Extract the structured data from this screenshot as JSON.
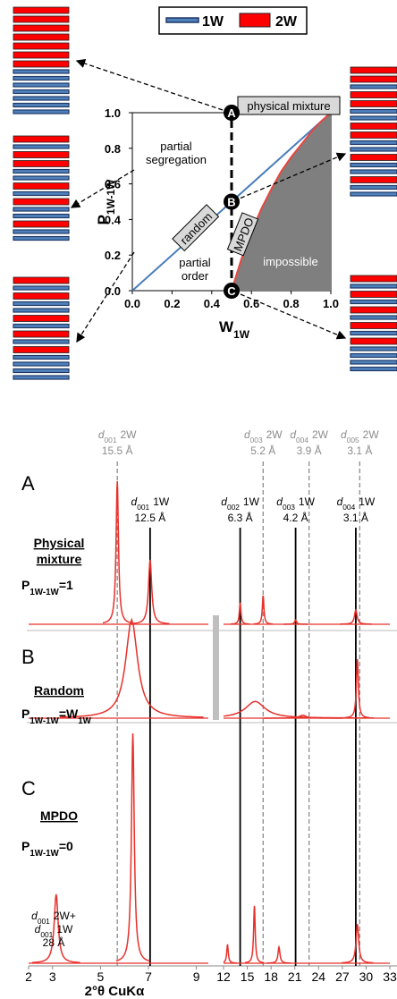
{
  "chart_data": [
    {
      "type": "line",
      "legend": [
        {
          "name": "1W",
          "color": "#4f81bd"
        },
        {
          "name": "2W",
          "color": "#ff0000"
        }
      ],
      "xlabel": [
        {
          "text": "W"
        },
        {
          "text": "1W",
          "sub": true
        }
      ],
      "ylabel": [
        {
          "text": "P"
        },
        {
          "text": "1W-1W",
          "sub": true
        }
      ],
      "xlim": [
        0,
        1
      ],
      "ylim": [
        0,
        1
      ],
      "xticks": [
        {
          "value": 0,
          "label": "0.0"
        },
        0.2,
        0.4,
        0.6,
        0.8,
        {
          "value": 1,
          "label": "1.0"
        }
      ],
      "yticks": [
        {
          "value": 0,
          "label": "0.0"
        },
        0.2,
        0.4,
        0.6,
        0.8,
        {
          "value": 1,
          "label": "1.0"
        }
      ],
      "series": [
        {
          "color": "#4a7ebb",
          "x": [
            0,
            1
          ],
          "values": [
            0,
            1
          ]
        },
        {
          "color": "#e8473f",
          "x": [
            0.5,
            0.55,
            0.6,
            0.65,
            0.7,
            0.75,
            0.8,
            0.85,
            0.9,
            0.95,
            1
          ],
          "values": [
            0,
            0.18,
            0.33,
            0.46,
            0.57,
            0.67,
            0.75,
            0.82,
            0.89,
            0.95,
            1
          ]
        }
      ],
      "region_color": "#7f7f7f",
      "points": [
        {
          "label": "A",
          "x": 0.5,
          "y": 1
        },
        {
          "label": "B",
          "x": 0.5,
          "y": 0.5
        },
        {
          "label": "C",
          "x": 0.5,
          "y": 0
        }
      ],
      "annotations": {
        "physical_mixture": "physical mixture",
        "partial_segregation": [
          "partial",
          "segregation"
        ],
        "random": "random",
        "mpdo": "MPDO",
        "partial_order": [
          "partial",
          "order"
        ],
        "impossible": "impossible"
      }
    },
    {
      "type": "spectrum",
      "color": "#e8302a",
      "xlim": [
        2,
        33
      ],
      "xbreak": [
        9.5,
        12
      ],
      "ylim": [
        0,
        1
      ],
      "xticks": [
        2,
        3,
        5,
        7,
        9,
        12,
        15,
        18,
        21,
        24,
        27,
        30,
        33
      ],
      "xlabel": "2°θ CuKα",
      "reference_lines": [
        {
          "x": 5.7,
          "letter": "d",
          "index": "001",
          "phase": "2W",
          "spacing": "15.5 Å",
          "dashed": true,
          "color": "#8c8c8c"
        },
        {
          "x": 17.0,
          "letter": "d",
          "index": "003",
          "phase": "2W",
          "spacing": "5.2 Å",
          "dashed": true,
          "color": "#8c8c8c"
        },
        {
          "x": 22.8,
          "letter": "d",
          "index": "004",
          "phase": "2W",
          "spacing": "3.9 Å",
          "dashed": true,
          "color": "#8c8c8c"
        },
        {
          "x": 29.2,
          "letter": "d",
          "index": "005",
          "phase": "2W",
          "spacing": "3.1 Å",
          "dashed": true,
          "color": "#8c8c8c"
        },
        {
          "x": 7.07,
          "letter": "d",
          "index": "001",
          "phase": "1W",
          "spacing": "12.5 Å",
          "dashed": false,
          "color": "#000000"
        },
        {
          "x": 14.1,
          "letter": "d",
          "index": "002",
          "phase": "1W",
          "spacing": "6.3 Å",
          "dashed": false,
          "color": "#000000"
        },
        {
          "x": 21.1,
          "letter": "d",
          "index": "003",
          "phase": "1W",
          "spacing": "4.2 Å",
          "dashed": false,
          "color": "#000000"
        },
        {
          "x": 28.7,
          "letter": "d",
          "index": "004",
          "phase": "1W",
          "spacing": "3.1 Å",
          "dashed": false,
          "color": "#000000"
        }
      ],
      "panels": [
        {
          "letter": "A",
          "name": [
            "Physical",
            "mixture"
          ],
          "formula": [
            {
              "text": "P"
            },
            {
              "text": "1W-1W",
              "sub": true
            },
            {
              "text": "=1"
            }
          ],
          "peaks": {
            "x": [
              5.7,
              7.07,
              14.1,
              17.0,
              21.1,
              28.7
            ],
            "values": [
              1,
              0.45,
              0.15,
              0.2,
              0.03,
              0.1
            ],
            "widths": [
              0.06,
              0.08,
              0.12,
              0.12,
              0.15,
              0.2
            ]
          }
        },
        {
          "letter": "B",
          "name": [
            "Random"
          ],
          "formula": [
            {
              "text": "P"
            },
            {
              "text": "1W-1W",
              "sub": true
            },
            {
              "text": "=W"
            },
            {
              "text": "1W",
              "sub": true
            }
          ],
          "peaks": {
            "x": [
              6.3,
              16.0,
              22.0,
              28.9
            ],
            "values": [
              1,
              0.17,
              0.03,
              0.6
            ],
            "widths": [
              0.3,
              1.5,
              0.5,
              0.15
            ]
          }
        },
        {
          "letter": "C",
          "name": [
            "MPDO"
          ],
          "formula": [
            {
              "text": "P"
            },
            {
              "text": "1W-1W",
              "sub": true
            },
            {
              "text": "=0"
            }
          ],
          "peaks": {
            "x": [
              3.15,
              6.35,
              12.5,
              15.9,
              19.0,
              28.9
            ],
            "values": [
              0.3,
              1,
              0.08,
              0.25,
              0.07,
              0.17
            ],
            "widths": [
              0.1,
              0.07,
              0.12,
              0.12,
              0.15,
              0.2
            ]
          },
          "annotation": {
            "lines": [
              {
                "letter": "d",
                "index": "001",
                "phase": "2W+"
              },
              {
                "letter": "d",
                "index": "001",
                "phase": "1W"
              }
            ],
            "spacing": "28 Å"
          }
        }
      ]
    }
  ]
}
